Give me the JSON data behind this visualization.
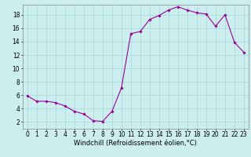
{
  "x": [
    0,
    1,
    2,
    3,
    4,
    5,
    6,
    7,
    8,
    9,
    10,
    11,
    12,
    13,
    14,
    15,
    16,
    17,
    18,
    19,
    20,
    21,
    22,
    23
  ],
  "y": [
    5.9,
    5.1,
    5.1,
    4.9,
    4.4,
    3.6,
    3.2,
    2.2,
    2.1,
    3.6,
    7.1,
    15.2,
    15.5,
    17.3,
    17.9,
    18.7,
    19.2,
    18.7,
    18.3,
    18.1,
    16.3,
    18.0,
    13.9,
    12.4
  ],
  "line_color": "#990099",
  "marker": "D",
  "markersize": 1.8,
  "linewidth": 0.8,
  "bg_color": "#cceeee",
  "grid_color": "#aadddd",
  "xlabel": "Windchill (Refroidissement éolien,°C)",
  "xlabel_fontsize": 6,
  "tick_fontsize": 5.5,
  "xlim": [
    -0.5,
    23.5
  ],
  "ylim": [
    1,
    19.5
  ],
  "yticks": [
    2,
    4,
    6,
    8,
    10,
    12,
    14,
    16,
    18
  ],
  "xticks": [
    0,
    1,
    2,
    3,
    4,
    5,
    6,
    7,
    8,
    9,
    10,
    11,
    12,
    13,
    14,
    15,
    16,
    17,
    18,
    19,
    20,
    21,
    22,
    23
  ]
}
